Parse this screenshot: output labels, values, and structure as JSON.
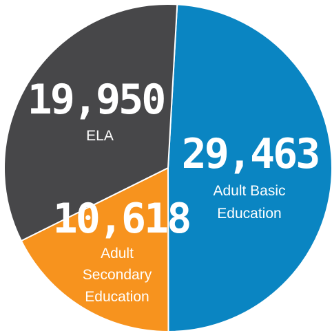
{
  "chart_data": {
    "type": "pie",
    "title": "",
    "legend": "none",
    "slices": [
      {
        "label": "Adult Basic Education",
        "label_lines": [
          "Adult Basic",
          "Education"
        ],
        "value": 29463,
        "value_label": "29,463",
        "color": "#0a85c2"
      },
      {
        "label": "Adult Secondary Education",
        "label_lines": [
          "Adult",
          "Secondary",
          "Education"
        ],
        "value": 10618,
        "value_label": "10,618",
        "color": "#f7931e"
      },
      {
        "label": "ELA",
        "label_lines": [
          "ELA"
        ],
        "value": 19950,
        "value_label": "19,950",
        "color": "#474749"
      }
    ]
  }
}
